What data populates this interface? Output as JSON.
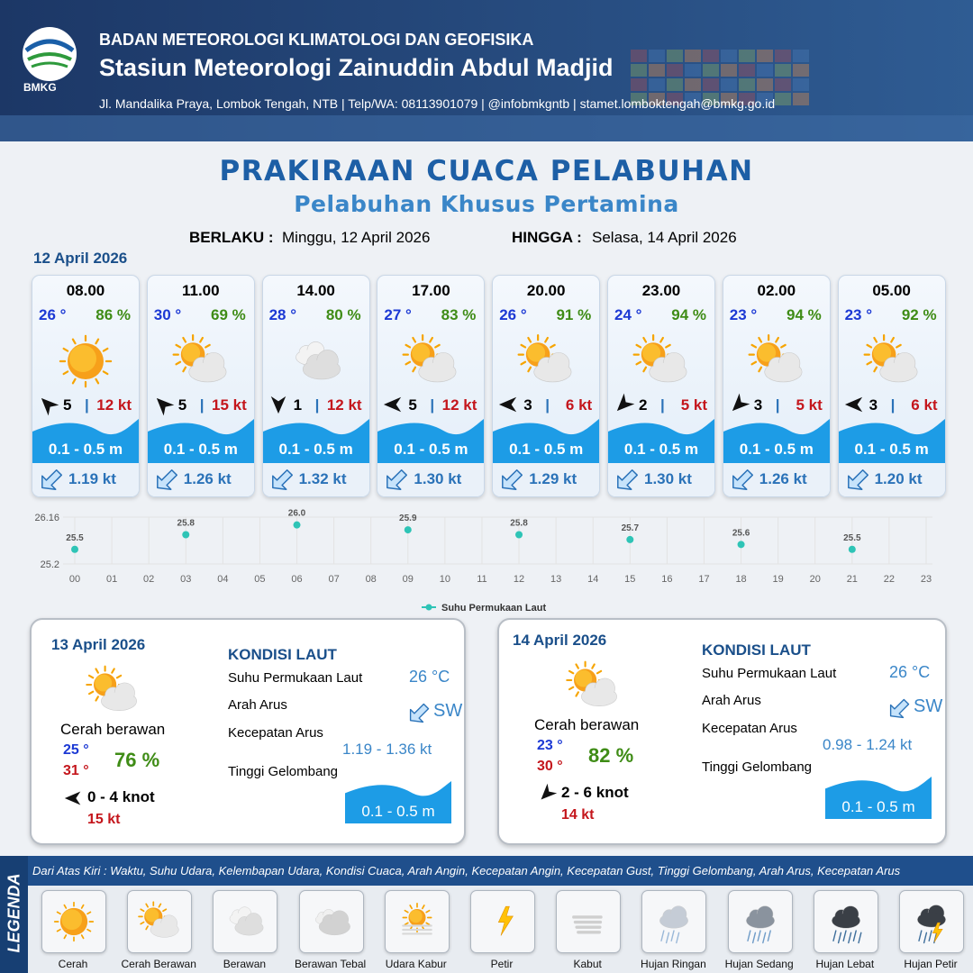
{
  "header": {
    "logo_text": "BMKG",
    "agency": "BADAN METEOROLOGI KLIMATOLOGI DAN GEOFISIKA",
    "station": "Stasiun Meteorologi Zainuddin Abdul Madjid",
    "contact": "Jl. Mandalika Praya, Lombok Tengah, NTB | Telp/WA: 08113901079 | @infobmkgntb | stamet.lomboktengah@bmkg.go.id"
  },
  "title": "PRAKIRAAN CUACA PELABUHAN",
  "subtitle": "Pelabuhan Khusus Pertamina",
  "validity": {
    "from_label": "BERLAKU :",
    "from": "Minggu, 12 April 2026",
    "to_label": "HINGGA :",
    "to": "Selasa, 14 April 2026"
  },
  "today": {
    "date": "12 April 2026",
    "forecasts": [
      {
        "time": "08.00",
        "temperature": "26 °",
        "humidity": "86 %",
        "wind_speed": "5",
        "gust": "12 kt",
        "wave": "0.1 - 0.5 m",
        "current": "1.19 kt"
      },
      {
        "time": "11.00",
        "temperature": "30 °",
        "humidity": "69 %",
        "wind_speed": "5",
        "gust": "15 kt",
        "wave": "0.1 - 0.5 m",
        "current": "1.26 kt"
      },
      {
        "time": "14.00",
        "temperature": "28 °",
        "humidity": "80 %",
        "wind_speed": "1",
        "gust": "12 kt",
        "wave": "0.1 - 0.5 m",
        "current": "1.32 kt"
      },
      {
        "time": "17.00",
        "temperature": "27 °",
        "humidity": "83 %",
        "wind_speed": "5",
        "gust": "12 kt",
        "wave": "0.1 - 0.5 m",
        "current": "1.30 kt"
      },
      {
        "time": "20.00",
        "temperature": "26 °",
        "humidity": "91 %",
        "wind_speed": "3",
        "gust": "6 kt",
        "wave": "0.1 - 0.5 m",
        "current": "1.29 kt"
      },
      {
        "time": "23.00",
        "temperature": "24 °",
        "humidity": "94 %",
        "wind_speed": "2",
        "gust": "5 kt",
        "wave": "0.1 - 0.5 m",
        "current": "1.30 kt"
      },
      {
        "time": "02.00",
        "temperature": "23 °",
        "humidity": "94 %",
        "wind_speed": "3",
        "gust": "5 kt",
        "wave": "0.1 - 0.5 m",
        "current": "1.26 kt"
      },
      {
        "time": "05.00",
        "temperature": "23 °",
        "humidity": "92 %",
        "wind_speed": "3",
        "gust": "6 kt",
        "wave": "0.1 - 0.5 m",
        "current": "1.20 kt"
      }
    ]
  },
  "chart_data": {
    "type": "scatter",
    "x": [
      0,
      3,
      6,
      9,
      12,
      15,
      18,
      21
    ],
    "series": [
      {
        "name": "Suhu Permukaan Laut",
        "color": "#2ec4b6",
        "values": [
          25.5,
          25.8,
          26.0,
          25.9,
          25.8,
          25.7,
          25.6,
          25.5
        ],
        "value_labels": [
          "25.5",
          "25.8",
          "26.0",
          "25.9",
          "25.8",
          "25.7",
          "25.6",
          "25.5"
        ]
      }
    ],
    "xlim": [
      0,
      23
    ],
    "xticks": [
      {
        "value": 0,
        "label": "00"
      },
      {
        "value": 1,
        "label": "01"
      },
      {
        "value": 2,
        "label": "02"
      },
      {
        "value": 3,
        "label": "03"
      },
      {
        "value": 4,
        "label": "04"
      },
      {
        "value": 5,
        "label": "05"
      },
      {
        "value": 6,
        "label": "06"
      },
      {
        "value": 7,
        "label": "07"
      },
      {
        "value": 8,
        "label": "08"
      },
      {
        "value": 9,
        "label": "09"
      },
      10,
      11,
      12,
      13,
      14,
      15,
      16,
      17,
      18,
      19,
      20,
      21,
      22,
      23
    ],
    "ylim": [
      25.2,
      26.16
    ],
    "yticks": [
      25.2,
      26.16
    ],
    "grid": true
  },
  "outlook": [
    {
      "date": "13 April 2026",
      "condition": "Cerah berawan",
      "temp_min": "25 °",
      "temp_max": "31 °",
      "humidity": "76 %",
      "wind": "0  - 4 knot",
      "gust": "15 kt",
      "sea_title": "KONDISI LAUT",
      "sst_label": "Suhu Permukaan Laut",
      "current_dir_label": "Arah Arus",
      "current_speed_label": "Kecepatan Arus",
      "wave_label": "Tinggi Gelombang",
      "sst": "26 °C",
      "current_dir": "SW",
      "current_speed": "1.19 - 1.36 kt",
      "wave": "0.1 - 0.5 m"
    },
    {
      "date": "14 April 2026",
      "condition": "Cerah berawan",
      "temp_min": "23 °",
      "temp_max": "30 °",
      "humidity": "82 %",
      "wind": "2 - 6 knot",
      "gust": "14 kt",
      "sea_title": "KONDISI LAUT",
      "sst_label": "Suhu Permukaan Laut",
      "current_dir_label": "Arah Arus",
      "current_speed_label": "Kecepatan Arus",
      "wave_label": "Tinggi Gelombang",
      "sst": "26 °C",
      "current_dir": "SW",
      "current_speed": "0.98 - 1.24 kt",
      "wave": "0.1 - 0.5 m"
    }
  ],
  "legend": {
    "title": "LEGENDA",
    "description": "Dari Atas Kiri : Waktu, Suhu Udara, Kelembapan Udara, Kondisi Cuaca, Arah Angin, Kecepatan Angin, Kecepatan Gust, Tinggi Gelombang, Arah Arus, Kecepatan Arus",
    "items": [
      "Cerah",
      "Cerah Berawan",
      "Berawan",
      "Berawan Tebal",
      "Udara Kabur",
      "Petir",
      "Kabut",
      "Hujan Ringan",
      "Hujan Sedang",
      "Hujan Lebat",
      "Hujan Petir"
    ]
  }
}
